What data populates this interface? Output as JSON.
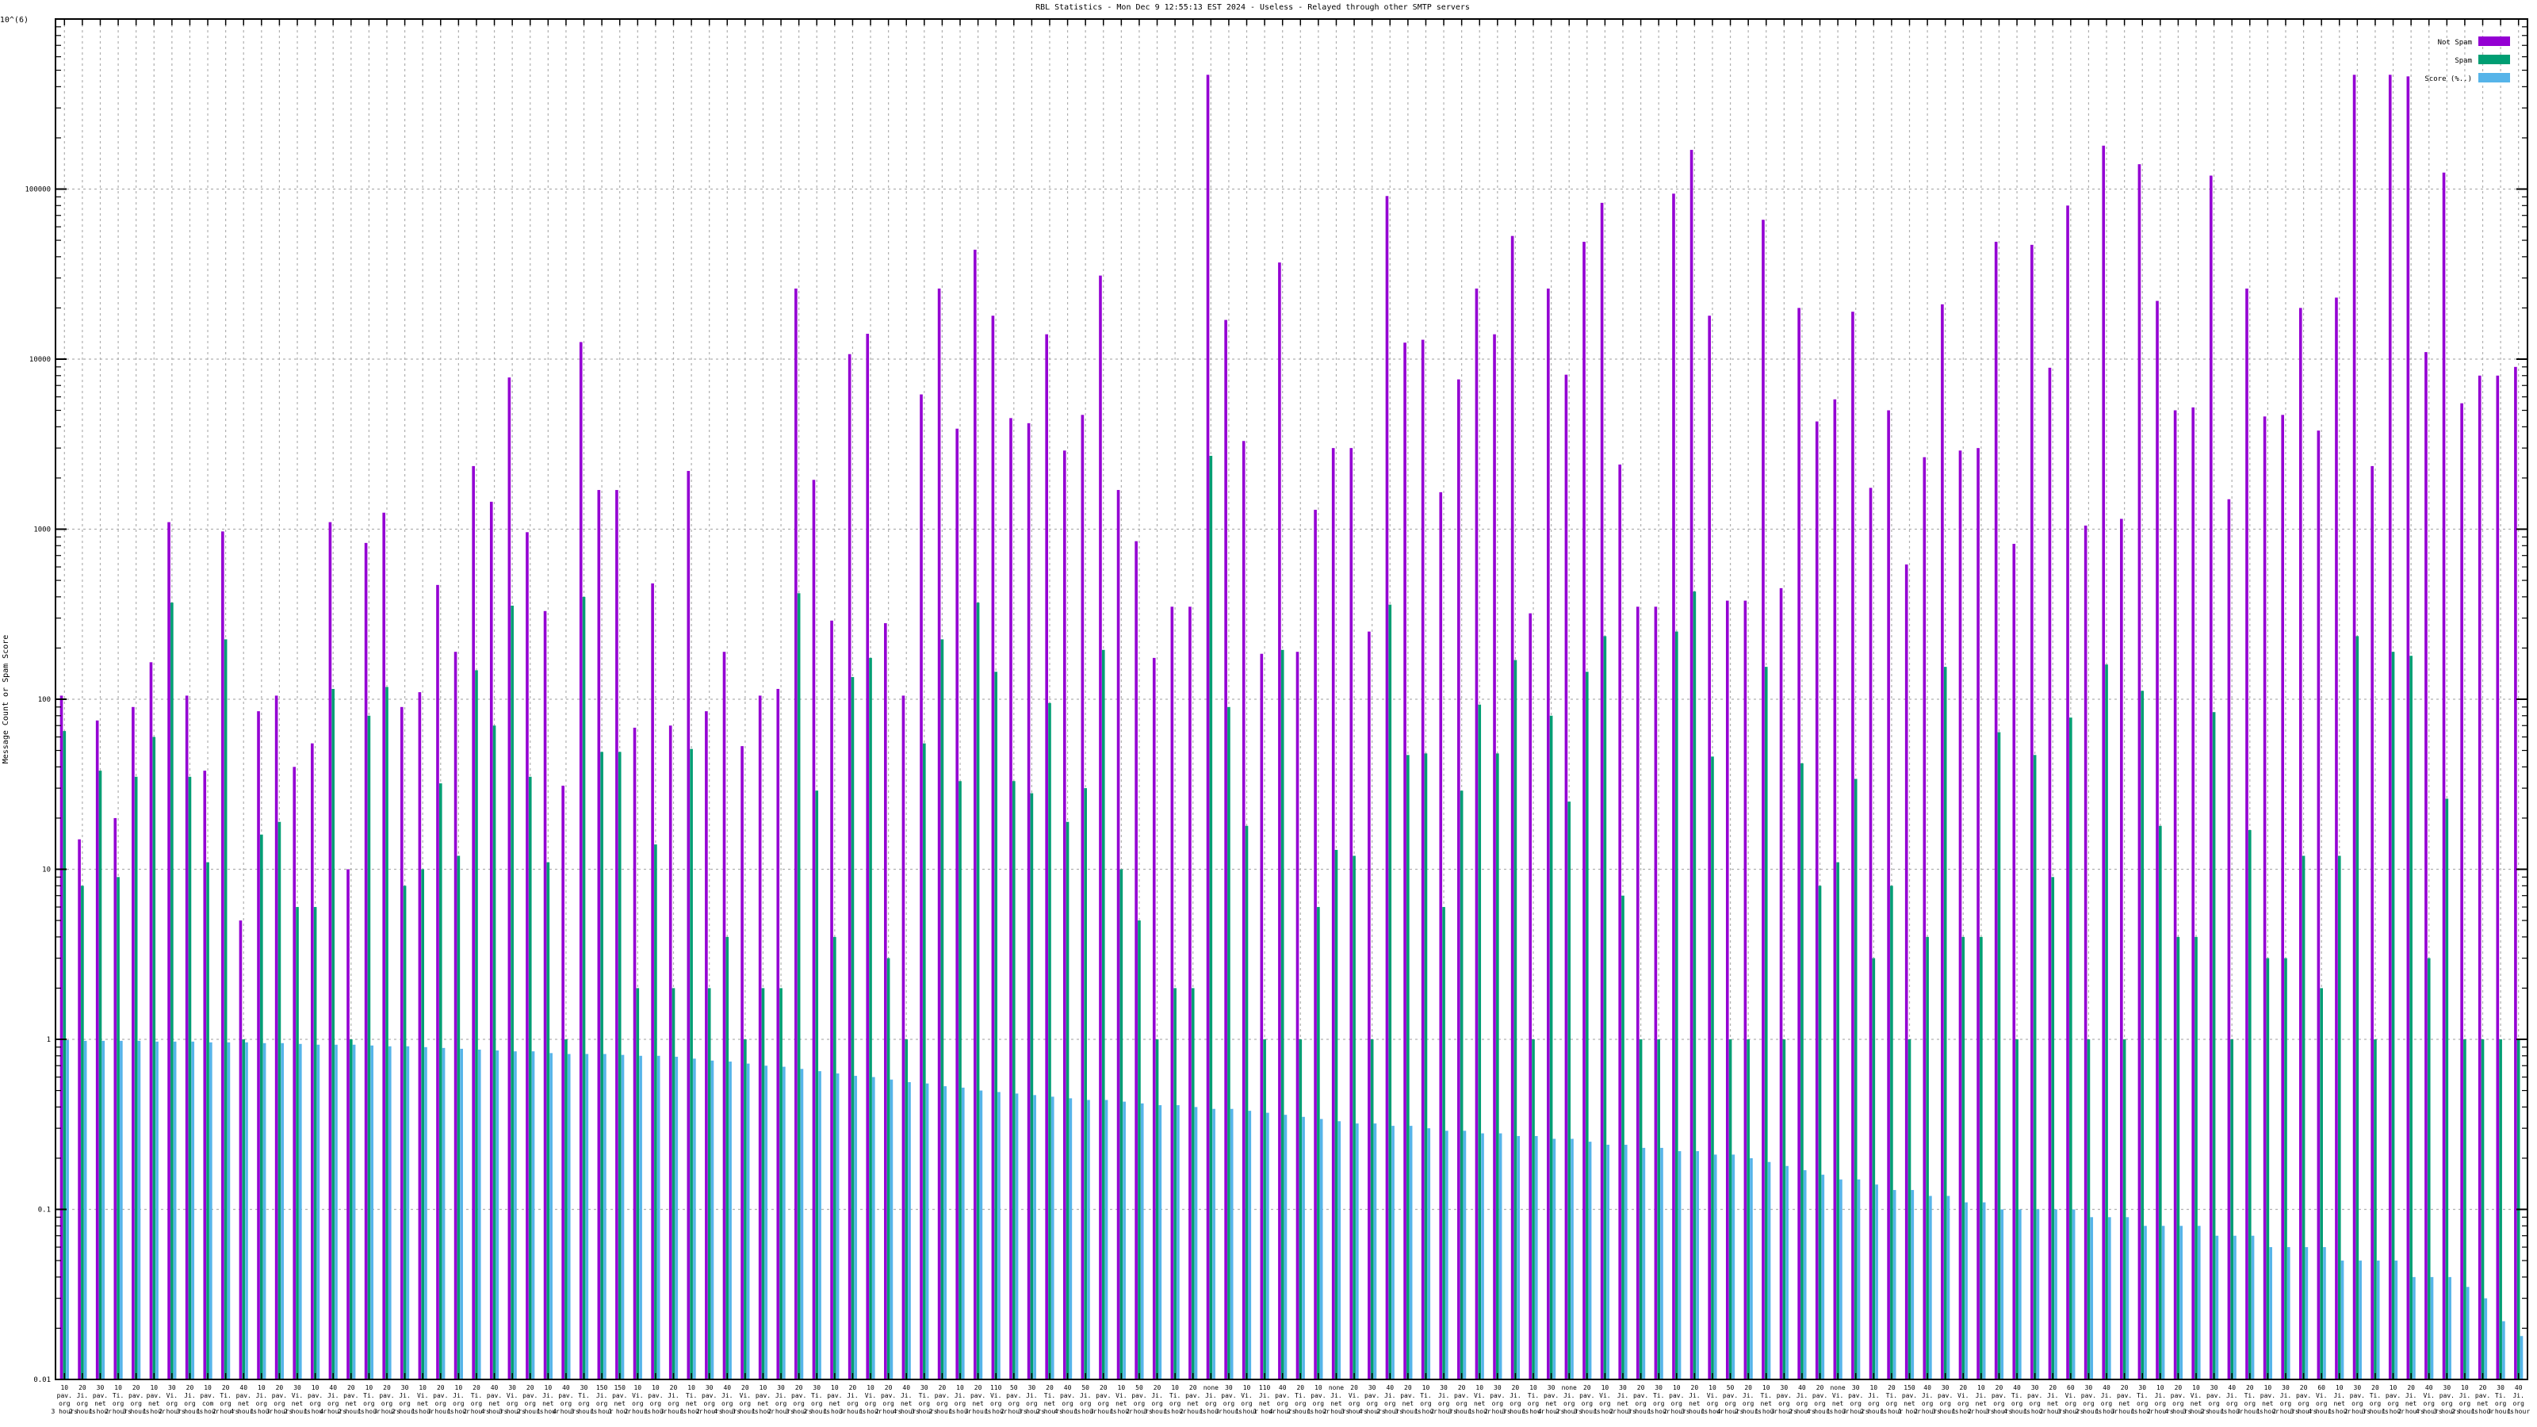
{
  "chart_data": {
    "type": "bar",
    "title": "RBL Statistics - Mon Dec  9 12:55:13 EST 2024 - Useless - Relayed through other SMTP servers",
    "ylabel": "Message Count or Spam Score",
    "y_scale": "log",
    "ylim": [
      0.01,
      1000000
    ],
    "y_ticks": [
      0.01,
      0.1,
      1,
      10,
      100,
      1000,
      10000,
      100000
    ],
    "y_tick_labels": [
      "0.01",
      "0.1",
      "1",
      "10",
      "100",
      "1000",
      "10000",
      "100000"
    ],
    "y_top_label": "1x10^(6)",
    "grid": true,
    "legend_position": "top-right",
    "legend": [
      {
        "name": "Not Spam",
        "color": "#9400d3"
      },
      {
        "name": "Spam",
        "color": "#009e73"
      },
      {
        "name": "Score (%..)",
        "color": "#56b4e9"
      }
    ],
    "colors": {
      "not_spam": "#9400d3",
      "spam": "#009e73",
      "score": "#56b4e9"
    },
    "category_count": 140,
    "series": [
      {
        "name": "Not Spam",
        "values": [
          105,
          15,
          75,
          20,
          90,
          165,
          1100,
          105,
          38,
          970,
          5,
          85,
          105,
          40,
          55,
          1100,
          10,
          830,
          1250,
          90,
          110,
          470,
          190,
          2350,
          1450,
          7800,
          960,
          330,
          31,
          12600,
          1700,
          1700,
          68,
          480,
          70,
          2200,
          85,
          190,
          53,
          105,
          115,
          26000,
          1950,
          290,
          10700,
          14100,
          280,
          105,
          6200,
          26000,
          3900,
          44000,
          18000,
          4500,
          4200,
          14000,
          2900,
          4700,
          31000,
          1700,
          850,
          175,
          350,
          350,
          470000,
          17000,
          3300,
          185,
          37000,
          190,
          1300,
          3000,
          3000,
          250,
          91000,
          12500,
          13000,
          1650,
          7600,
          26000,
          14000,
          53000,
          320,
          26000,
          8100,
          49000,
          83000,
          2400,
          350,
          350,
          94000,
          170000,
          18000,
          380,
          380,
          66000,
          450,
          20000,
          4300,
          5800,
          19000,
          1750,
          5000,
          620,
          2650,
          21000,
          2900,
          3000,
          49000,
          820,
          47000,
          8900,
          80000,
          1050,
          180000,
          1150,
          140000,
          22000,
          5000,
          5200,
          120000,
          1500,
          26000,
          4600,
          4700,
          20000,
          3800,
          23000,
          470000,
          2350,
          470000,
          460000,
          11000,
          125000,
          5500,
          8000,
          8000,
          9000
        ]
      },
      {
        "name": "Spam",
        "values": [
          65,
          8,
          38,
          9,
          35,
          60,
          370,
          35,
          11,
          225,
          1,
          16,
          19,
          6,
          6,
          115,
          1,
          80,
          118,
          8,
          10,
          32,
          12,
          148,
          70,
          355,
          35,
          11,
          1,
          400,
          49,
          49,
          2,
          14,
          2,
          51,
          2,
          4,
          1,
          2,
          2,
          420,
          29,
          4,
          135,
          175,
          3,
          1,
          55,
          225,
          33,
          370,
          145,
          33,
          28,
          95,
          19,
          30,
          195,
          10,
          5,
          1,
          2,
          2,
          2700,
          90,
          18,
          1,
          195,
          1,
          6,
          13,
          12,
          1,
          360,
          47,
          48,
          6,
          29,
          93,
          48,
          170,
          1,
          80,
          25,
          145,
          235,
          7,
          1,
          1,
          250,
          430,
          46,
          1,
          1,
          155,
          1,
          42,
          8,
          11,
          34,
          3,
          8,
          1,
          4,
          155,
          4,
          4,
          64,
          1,
          47,
          9,
          78,
          1,
          160,
          1,
          112,
          18,
          4,
          4,
          84,
          1,
          17,
          3,
          3,
          12,
          2,
          12,
          235,
          1,
          190,
          180,
          3,
          26,
          1,
          1,
          1,
          1
        ]
      },
      {
        "name": "Score (%..)",
        "values": [
          0.99,
          0.98,
          0.98,
          0.98,
          0.98,
          0.97,
          0.97,
          0.97,
          0.96,
          0.96,
          0.96,
          0.95,
          0.95,
          0.94,
          0.93,
          0.93,
          0.93,
          0.92,
          0.91,
          0.91,
          0.9,
          0.89,
          0.88,
          0.87,
          0.86,
          0.85,
          0.85,
          0.83,
          0.82,
          0.82,
          0.82,
          0.81,
          0.8,
          0.8,
          0.79,
          0.77,
          0.75,
          0.74,
          0.72,
          0.7,
          0.69,
          0.67,
          0.65,
          0.63,
          0.61,
          0.6,
          0.58,
          0.56,
          0.55,
          0.53,
          0.52,
          0.5,
          0.49,
          0.48,
          0.47,
          0.46,
          0.45,
          0.44,
          0.44,
          0.43,
          0.42,
          0.41,
          0.41,
          0.4,
          0.39,
          0.39,
          0.38,
          0.37,
          0.36,
          0.35,
          0.34,
          0.33,
          0.32,
          0.32,
          0.31,
          0.31,
          0.3,
          0.29,
          0.29,
          0.28,
          0.28,
          0.27,
          0.27,
          0.26,
          0.26,
          0.25,
          0.24,
          0.24,
          0.23,
          0.23,
          0.22,
          0.22,
          0.21,
          0.21,
          0.2,
          0.19,
          0.18,
          0.17,
          0.16,
          0.15,
          0.15,
          0.14,
          0.13,
          0.13,
          0.12,
          0.12,
          0.11,
          0.11,
          0.1,
          0.1,
          0.1,
          0.1,
          0.1,
          0.09,
          0.09,
          0.09,
          0.08,
          0.08,
          0.08,
          0.08,
          0.07,
          0.07,
          0.07,
          0.06,
          0.06,
          0.06,
          0.06,
          0.05,
          0.05,
          0.05,
          0.05,
          0.04,
          0.04,
          0.04,
          0.035,
          0.03,
          0.022,
          0.018,
          0.015,
          0.014
        ]
      }
    ],
    "x_tick_labels_row1": [
      "10",
      "20",
      "30",
      "10",
      "20",
      "10",
      "30",
      "20",
      "10",
      "20",
      "40",
      "10",
      "20",
      "30",
      "10",
      "40",
      "20",
      "10",
      "20",
      "30",
      "10",
      "20",
      "10",
      "20",
      "40",
      "30",
      "20",
      "10",
      "40",
      "30",
      "150",
      "150",
      "10",
      "10",
      "20",
      "10",
      "30",
      "40",
      "20",
      "10",
      "30",
      "20",
      "30",
      "10",
      "20",
      "10",
      "20",
      "40",
      "30",
      "20",
      "10",
      "20",
      "110",
      "50",
      "30",
      "20",
      "40",
      "50",
      "20",
      "10",
      "50",
      "20",
      "10",
      "20",
      "none",
      "30",
      "10",
      "110",
      "40",
      "20",
      "10",
      "none",
      "20",
      "30",
      "40",
      "20",
      "10",
      "30",
      "20",
      "10",
      "30",
      "20",
      "10",
      "30",
      "none",
      "20",
      "10",
      "30",
      "20",
      "30",
      "10",
      "20",
      "10",
      "50",
      "20",
      "10",
      "30",
      "40",
      "20",
      "none",
      "30",
      "10",
      "20",
      "150",
      "40",
      "30",
      "20",
      "10",
      "20",
      "40",
      "30",
      "20",
      "60",
      "30",
      "40",
      "20",
      "30",
      "10",
      "20",
      "10",
      "30",
      "40",
      "20",
      "10",
      "30",
      "20",
      "60",
      "10",
      "30",
      "20",
      "10",
      "20",
      "40",
      "30",
      "10",
      "20",
      "30",
      "40",
      "20",
      "10"
    ],
    "x_tick_labels_row2": [
      "pav.",
      "Ji.",
      "pav.",
      "Ti.",
      "pav.",
      "pav.",
      "Vi.",
      "Ji.",
      "pav.",
      "Ti.",
      "pav.",
      "Ji.",
      "pav.",
      "Vi.",
      "pav.",
      "Ji.",
      "pav.",
      "Ti.",
      "pav.",
      "Ji.",
      "Vi.",
      "pav.",
      "Ji.",
      "Ti.",
      "pav.",
      "Vi.",
      "pav.",
      "Ji.",
      "pav.",
      "Ti.",
      "Ji.",
      "pav.",
      "Vi.",
      "pav.",
      "Ji.",
      "Ti.",
      "pav.",
      "Ji.",
      "Vi.",
      "pav.",
      "Ji.",
      "pav.",
      "Ti.",
      "pav.",
      "Ji.",
      "Vi.",
      "pav.",
      "Ji.",
      "Ti.",
      "pav.",
      "Ji.",
      "pav.",
      "Vi.",
      "pav.",
      "Ji.",
      "Ti.",
      "pav.",
      "Ji.",
      "pav.",
      "Vi.",
      "pav.",
      "Ji.",
      "Ti.",
      "pav.",
      "Ji.",
      "pav.",
      "Vi.",
      "Ji.",
      "pav.",
      "Ti.",
      "pav.",
      "Ji.",
      "Vi.",
      "pav.",
      "Ji.",
      "pav.",
      "Ti.",
      "Ji.",
      "pav.",
      "Vi.",
      "pav.",
      "Ji.",
      "Ti.",
      "pav.",
      "Ji.",
      "pav.",
      "Vi.",
      "Ji.",
      "pav.",
      "Ti.",
      "pav.",
      "Ji.",
      "Vi.",
      "pav.",
      "Ji.",
      "Ti.",
      "pav.",
      "Ji.",
      "pav.",
      "Vi.",
      "pav.",
      "Ji.",
      "Ti.",
      "pav.",
      "Ji.",
      "pav.",
      "Vi.",
      "Ji.",
      "pav.",
      "Ti.",
      "pav.",
      "Ji.",
      "Vi.",
      "pav.",
      "Ji.",
      "pav.",
      "Ti.",
      "Ji.",
      "pav.",
      "Vi.",
      "pav.",
      "Ji.",
      "Ti.",
      "pav.",
      "Ji.",
      "pav.",
      "Vi.",
      "Ji.",
      "pav.",
      "Ti.",
      "pav.",
      "Ji.",
      "Vi.",
      "pav.",
      "Ji.",
      "pav.",
      "Ti.",
      "Ji.",
      "pav.",
      "Vi."
    ],
    "x_tick_labels_row3": [
      "org",
      "org",
      "net",
      "org",
      "org",
      "net",
      "org",
      "org",
      "com",
      "org",
      "net",
      "org",
      "org",
      "net",
      "org",
      "org",
      "net",
      "org",
      "org",
      "org",
      "net",
      "org",
      "org",
      "org",
      "net",
      "org",
      "org",
      "net",
      "org",
      "org",
      "org",
      "net",
      "org",
      "org",
      "org",
      "net",
      "org",
      "org",
      "org",
      "net",
      "org",
      "org",
      "org",
      "net",
      "org",
      "org",
      "org",
      "net",
      "org",
      "org",
      "org",
      "net",
      "org",
      "org",
      "org",
      "net",
      "org",
      "org",
      "org",
      "net",
      "org",
      "org",
      "org",
      "net",
      "org",
      "org",
      "org",
      "net",
      "org",
      "org",
      "org",
      "net",
      "org",
      "org",
      "org",
      "net",
      "org",
      "org",
      "org",
      "net",
      "org",
      "org",
      "org",
      "net",
      "org",
      "org",
      "org",
      "net",
      "org",
      "org",
      "org",
      "net",
      "org",
      "org",
      "org",
      "net",
      "org",
      "org",
      "org",
      "net",
      "org",
      "org",
      "org",
      "net",
      "org",
      "org",
      "org",
      "net",
      "org",
      "org",
      "org",
      "net",
      "org",
      "org",
      "org",
      "net",
      "org",
      "org",
      "org",
      "net",
      "org",
      "org",
      "org",
      "net",
      "org",
      "org",
      "org",
      "net",
      "org",
      "org",
      "org",
      "net",
      "org",
      "org",
      "org",
      "net",
      "org",
      "org",
      "org",
      "net"
    ],
    "x_tick_labels_row4": [
      "3 hours",
      "2 hours",
      "1 hour",
      "2 hours",
      "3 hours",
      "1 hour",
      "2 hours",
      "3 hours",
      "1 hour",
      "2 hours",
      "4 hours",
      "1 hour",
      "3 hours",
      "2 hours",
      "1 hour",
      "4 hours",
      "2 hours",
      "1 hour",
      "3 hours",
      "2 hours",
      "1 hour",
      "3 hours",
      "1 hour",
      "2 hours",
      "4 hours",
      "3 hours",
      "2 hours",
      "1 hour",
      "4 hours",
      "3 hours",
      "1 hour",
      "1 hour",
      "2 hours",
      "1 hour",
      "3 hours",
      "1 hour",
      "2 hours",
      "4 hours",
      "3 hours",
      "1 hour",
      "2 hours",
      "3 hours",
      "2 hours",
      "1 hour",
      "3 hours",
      "1 hour",
      "2 hours",
      "4 hours",
      "3 hours",
      "2 hours",
      "1 hour",
      "3 hours",
      "1 hour",
      "2 hours",
      "3 hours",
      "2 hours",
      "4 hours",
      "1 hour",
      "3 hours",
      "1 hour",
      "2 hours",
      "3 hours",
      "1 hour",
      "2 hours",
      "1 hour",
      "3 hours",
      "1 hour",
      "1 hour",
      "4 hours",
      "2 hours",
      "1 hour",
      "2 hours",
      "3 hours",
      "4 hours",
      "2 hours",
      "3 hours",
      "1 hour",
      "2 hours",
      "3 hours",
      "1 hour",
      "2 hours",
      "3 hours",
      "1 hour",
      "4 hours",
      "2 hours",
      "3 hours",
      "1 hour",
      "2 hours",
      "3 hours",
      "1 hour",
      "2 hours",
      "3 hours",
      "1 hour",
      "4 hours",
      "2 hours",
      "1 hour",
      "3 hours",
      "2 hours",
      "4 hours",
      "1 hour",
      "3 hours",
      "2 hours",
      "1 hour",
      "1 hour",
      "2 hours",
      "3 hours",
      "1 hour",
      "2 hours",
      "3 hours",
      "4 hours",
      "1 hour",
      "2 hours",
      "3 hours",
      "2 hours",
      "1 hour",
      "3 hours",
      "1 hour",
      "2 hours",
      "4 hours",
      "3 hours",
      "2 hours",
      "1 hour",
      "3 hours",
      "1 hour",
      "2 hours",
      "3 hours",
      "4 hours",
      "1 hour",
      "2 hours",
      "3 hours",
      "1 hour",
      "2 hours",
      "4 hours",
      "3 hours",
      "2 hours",
      "1 hour",
      "3 hours",
      "1 hour",
      "2 hours",
      "3 hours"
    ]
  }
}
